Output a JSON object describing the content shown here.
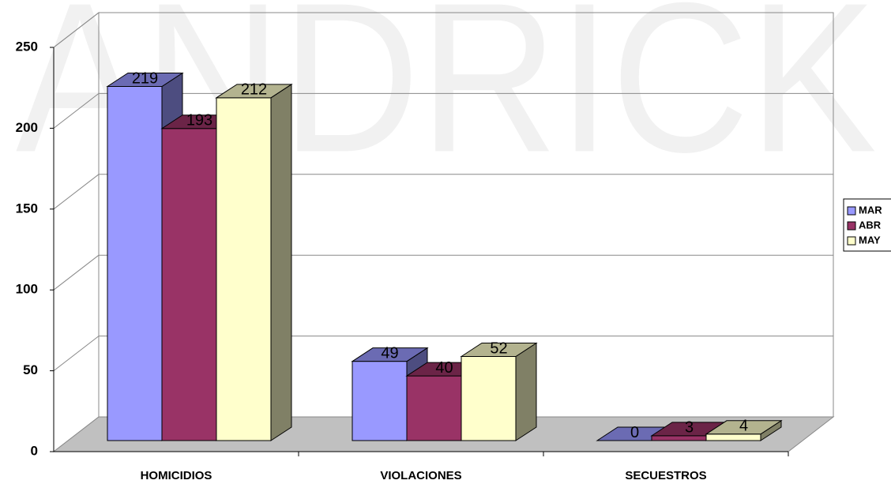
{
  "chart_data": {
    "type": "bar3d",
    "watermark": "ANDRICK",
    "categories": [
      "HOMICIDIOS",
      "VIOLACIONES",
      "SECUESTROS"
    ],
    "series": [
      {
        "name": "MAR",
        "color": "#9999ff",
        "values": [
          219,
          49,
          0
        ]
      },
      {
        "name": "ABR",
        "color": "#993366",
        "values": [
          193,
          40,
          3
        ]
      },
      {
        "name": "MAY",
        "color": "#ffffcc",
        "values": [
          212,
          52,
          4
        ]
      }
    ],
    "ylim": [
      0,
      250
    ],
    "yticks": [
      0,
      50,
      100,
      150,
      200,
      250
    ],
    "grid": true,
    "legend": "right"
  }
}
